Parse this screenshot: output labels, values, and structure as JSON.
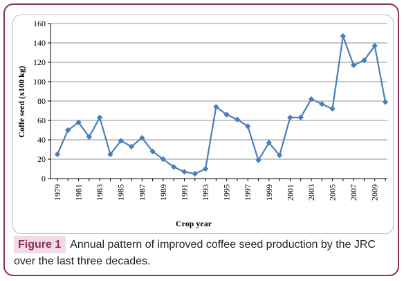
{
  "figure": {
    "label": "Figure 1",
    "caption": "Annual pattern of improved coffee seed production by the JRC over the last three decades."
  },
  "colors": {
    "frame": "#8b2f5a",
    "label_bg": "#f3dbe6",
    "series": "#4a7ebb"
  },
  "chart_data": {
    "type": "line",
    "xlabel": "Crop year",
    "ylabel": "Coffe seed (x100 kg)",
    "ylim": [
      0,
      160
    ],
    "yticks": [
      0,
      20,
      40,
      60,
      80,
      100,
      120,
      140,
      160
    ],
    "xtick_labels": [
      "1979",
      "1981",
      "1983",
      "1985",
      "1987",
      "1989",
      "1991",
      "1993",
      "1995",
      "1997",
      "1999",
      "2001",
      "2003",
      "2005",
      "2007",
      "2009"
    ],
    "grid": true,
    "legend": "none",
    "series": [
      {
        "x": [
          1979,
          1980,
          1981,
          1982,
          1983,
          1984,
          1985,
          1986,
          1987,
          1988,
          1989,
          1990,
          1991,
          1992,
          1993,
          1994,
          1995,
          1996,
          1997,
          1998,
          1999,
          2000,
          2001,
          2002,
          2003,
          2004,
          2005,
          2006,
          2007,
          2008,
          2009,
          2010
        ],
        "values": [
          25,
          50,
          58,
          43,
          63,
          25,
          39,
          33,
          42,
          28,
          20,
          12,
          7,
          5,
          10,
          74,
          66,
          61,
          54,
          19,
          37,
          24,
          63,
          63,
          82,
          77,
          72,
          147,
          117,
          122,
          137,
          79
        ]
      }
    ]
  }
}
